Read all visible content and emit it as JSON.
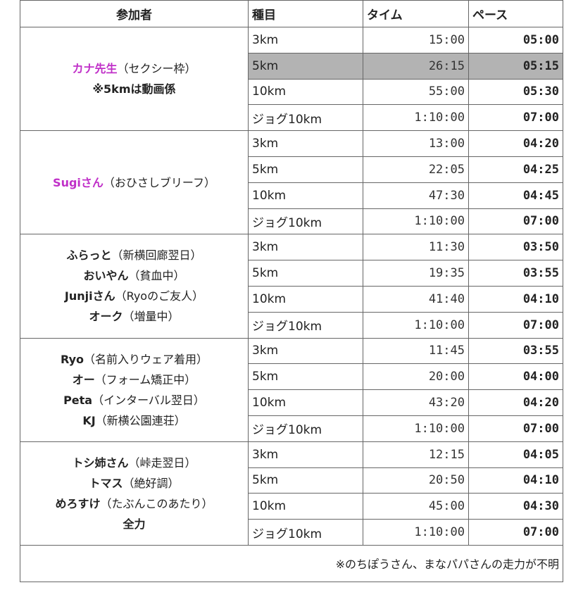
{
  "table": {
    "header": [
      "参加者",
      "種目",
      "タイム",
      "ペース"
    ],
    "groups": [
      {
        "participants": [
          {
            "name": "カナ先生",
            "note": "（セクシー枠）",
            "color": "#c030c8"
          },
          {
            "name": "※5kmは動画係"
          }
        ],
        "highlight": 1,
        "rows": [
          [
            "3km",
            "15:00",
            "05:00"
          ],
          [
            "5km",
            "26:15",
            "05:15"
          ],
          [
            "10km",
            "55:00",
            "05:30"
          ],
          [
            "ジョグ10km",
            "1:10:00",
            "07:00"
          ]
        ]
      },
      {
        "participants": [
          {
            "name": "Sugiさん",
            "note": "（おひさしブリーフ）",
            "color": "#c030c8"
          }
        ],
        "rows": [
          [
            "3km",
            "13:00",
            "04:20"
          ],
          [
            "5km",
            "22:05",
            "04:25"
          ],
          [
            "10km",
            "47:30",
            "04:45"
          ],
          [
            "ジョグ10km",
            "1:10:00",
            "07:00"
          ]
        ]
      },
      {
        "participants": [
          {
            "name": "ふらっと",
            "note": "（新横回廊翌日）"
          },
          {
            "name": "おいやん",
            "note": "（貧血中）"
          },
          {
            "name": "Junjiさん",
            "note": "（Ryoのご友人）"
          },
          {
            "name": "オーク",
            "note": "（増量中）"
          }
        ],
        "rows": [
          [
            "3km",
            "11:30",
            "03:50"
          ],
          [
            "5km",
            "19:35",
            "03:55"
          ],
          [
            "10km",
            "41:40",
            "04:10"
          ],
          [
            "ジョグ10km",
            "1:10:00",
            "07:00"
          ]
        ]
      },
      {
        "participants": [
          {
            "name": "Ryo",
            "note": "（名前入りウェア着用）"
          },
          {
            "name": "オー",
            "note": "（フォーム矯正中）"
          },
          {
            "name": "Peta",
            "note": "（インターバル翌日）"
          },
          {
            "name": "KJ",
            "note": "（新横公園連荘）"
          }
        ],
        "rows": [
          [
            "3km",
            "11:45",
            "03:55"
          ],
          [
            "5km",
            "20:00",
            "04:00"
          ],
          [
            "10km",
            "43:20",
            "04:20"
          ],
          [
            "ジョグ10km",
            "1:10:00",
            "07:00"
          ]
        ]
      },
      {
        "participants": [
          {
            "name": "トシ姉さん",
            "note": "（峠走翌日）"
          },
          {
            "name": "トマス",
            "note": "（絶好調）"
          },
          {
            "name": "めろすけ",
            "note": "（たぶんこのあたり）"
          },
          {
            "name": "全力"
          }
        ],
        "rows": [
          [
            "3km",
            "12:15",
            "04:05"
          ],
          [
            "5km",
            "20:50",
            "04:10"
          ],
          [
            "10km",
            "45:00",
            "04:30"
          ],
          [
            "ジョグ10km",
            "1:10:00",
            "07:00"
          ]
        ]
      }
    ],
    "footer": "※のちぽうさん、まなパパさんの走力が不明"
  }
}
